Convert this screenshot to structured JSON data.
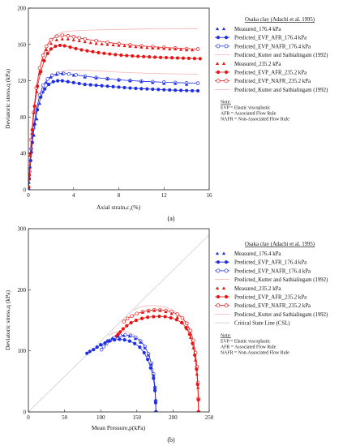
{
  "colors": {
    "blue": "#1f2ee0",
    "red": "#e81414",
    "pink": "#f4b4b4",
    "csl": "#c8c8c8",
    "axis": "#222222"
  },
  "chart_data": [
    {
      "type": "scatter",
      "panel_label": "(a)",
      "xlabel": "Axial strain,ε₁(%)",
      "ylabel": "Deviatoric stress,q (kPa)",
      "xlim": [
        0,
        16
      ],
      "ylim": [
        0,
        200
      ],
      "xticks": [
        "0",
        "4",
        "8",
        "12",
        "16"
      ],
      "yticks": [
        "0",
        "40",
        "80",
        "120",
        "160",
        "200"
      ],
      "legend_title": "Osaka clay (Adachi et al. 1995)",
      "legend": [
        "Measured_176.4 kPa",
        "Predicted_EVP_AFR_176.4 kPa",
        "Predicted_EVP_NAFR_176.4 kPa",
        "Predicted_Kutter and Sathialingam (1992)",
        "Measured_235.2 kPa",
        "Predicted_EVP_AFR_235.2 kPa",
        "Predicted_EVP_NAFR_235.2 kPa",
        "Predicted_Kutter and Sathialingam (1992)"
      ],
      "notes": [
        "Note:",
        "EVP   = Elastic viscoplastic",
        "AFR   = Associated Flow Rule",
        "NAFR = Non-Associated Flow Rule"
      ],
      "series": [
        {
          "name": "Measured_176.4 kPa",
          "x": [
            0.05,
            0.15,
            0.3,
            0.5,
            0.75,
            1.0,
            1.3,
            1.6,
            2.0,
            2.5,
            3.0,
            4.0,
            5.0,
            6.0,
            7.0,
            8.0,
            9.0,
            10.0,
            11.0,
            12.0,
            13.0,
            14.0
          ],
          "y": [
            8,
            25,
            42,
            60,
            78,
            95,
            108,
            118,
            124,
            127,
            128,
            126,
            124,
            123,
            122,
            121,
            120,
            119,
            118,
            117,
            117,
            116
          ]
        },
        {
          "name": "Predicted_EVP_AFR_176.4 kPa",
          "x": [
            0.02,
            0.08,
            0.2,
            0.35,
            0.55,
            0.8,
            1.1,
            1.45,
            1.8,
            2.2,
            2.6,
            3.0,
            3.5,
            4.0,
            4.5,
            5.0,
            5.5,
            6.0,
            6.5,
            7.0,
            7.5,
            8.0,
            8.5,
            9.0,
            9.5,
            10.0,
            10.5,
            11.0,
            11.5,
            12.0,
            12.5,
            13.0,
            13.5,
            14.0,
            14.5,
            15.0
          ],
          "y": [
            2,
            12,
            32,
            52,
            72,
            88,
            102,
            111,
            116,
            119,
            120,
            120,
            119,
            118,
            117,
            116,
            115.5,
            115,
            114.5,
            114,
            113.5,
            113,
            112.5,
            112,
            111.6,
            111.3,
            111,
            110.7,
            110.4,
            110.1,
            109.8,
            109.6,
            109.4,
            109.2,
            109,
            108.9
          ]
        },
        {
          "name": "Predicted_EVP_NAFR_176.4 kPa",
          "x": [
            0,
            0.1,
            0.25,
            0.45,
            0.7,
            1.0,
            1.3,
            1.7,
            2.1,
            2.6,
            3.1,
            3.6,
            4.2,
            5.0,
            6.0,
            7.0,
            8.0,
            9.0,
            10.0,
            11.0,
            12.0,
            13.0,
            14.0,
            15.0
          ],
          "y": [
            0,
            20,
            45,
            68,
            88,
            104,
            115,
            122,
            126,
            128,
            128,
            127.5,
            126.5,
            125,
            123.5,
            122.2,
            121,
            120.2,
            119.5,
            118.9,
            118.4,
            118,
            117.6,
            117.3
          ]
        },
        {
          "name": "Predicted_Kutter and Sathialingam (1992)",
          "x": [
            0,
            0.1,
            0.25,
            0.45,
            0.7,
            1.0,
            1.3,
            1.7,
            2.2,
            2.8,
            3.5,
            4.5,
            6,
            8,
            10,
            12,
            14,
            15
          ],
          "y": [
            0,
            18,
            42,
            66,
            86,
            102,
            112,
            120,
            126,
            130,
            131.5,
            132,
            131,
            129.5,
            128.5,
            127.8,
            127.3,
            127
          ]
        },
        {
          "name": "Measured_235.2 kPa",
          "x": [
            0.05,
            0.15,
            0.3,
            0.5,
            0.75,
            1.0,
            1.3,
            1.6,
            2.0,
            2.5,
            3.0,
            3.5,
            4.0,
            4.5,
            5.0,
            5.5,
            6.0,
            6.5,
            7.0,
            7.5,
            8.0,
            8.5,
            9.0,
            9.5,
            10.0,
            10.5,
            11.0,
            11.5,
            12.0,
            12.5,
            13.0,
            13.5,
            14.0,
            14.5
          ],
          "y": [
            12,
            38,
            62,
            85,
            108,
            128,
            143,
            154,
            161,
            165,
            166,
            166,
            165,
            164,
            163,
            162,
            161,
            160.5,
            160,
            159.5,
            159,
            158.5,
            158,
            157.5,
            157,
            156.5,
            156,
            156,
            155.5,
            155,
            155,
            154.5,
            154,
            154
          ]
        },
        {
          "name": "Predicted_EVP_AFR_235.2 kPa",
          "x": [
            0.02,
            0.08,
            0.2,
            0.35,
            0.55,
            0.8,
            1.1,
            1.4,
            1.7,
            2.0,
            2.4,
            2.8,
            3.2,
            3.7,
            4.2,
            4.7,
            5.2,
            5.7,
            6.2,
            6.7,
            7.2,
            7.7,
            8.2,
            8.7,
            9.2,
            9.7,
            10.2,
            10.7,
            11.2,
            11.7,
            12.2,
            12.7,
            13.2,
            13.7,
            14.2,
            14.7,
            15.2
          ],
          "y": [
            3,
            16,
            40,
            66,
            92,
            114,
            130,
            142,
            150,
            155,
            158,
            159,
            158.5,
            157,
            155.5,
            154,
            153,
            152,
            151,
            150.2,
            149.5,
            148.8,
            148.2,
            147.7,
            147.3,
            146.9,
            146.6,
            146.3,
            146,
            145.7,
            145.5,
            145.3,
            145.1,
            144.9,
            144.7,
            144.5,
            144.3
          ]
        },
        {
          "name": "Predicted_EVP_NAFR_235.2 kPa",
          "x": [
            0,
            0.1,
            0.25,
            0.45,
            0.7,
            1.0,
            1.3,
            1.6,
            2.0,
            2.5,
            3.0,
            3.5,
            4.0,
            4.5,
            5,
            6,
            7,
            8,
            9,
            10,
            11,
            12,
            13,
            14,
            15
          ],
          "y": [
            0,
            25,
            55,
            85,
            112,
            134,
            148,
            158,
            165,
            169,
            170,
            169.5,
            168.5,
            167.2,
            166,
            164,
            162.2,
            160.8,
            159.5,
            158.4,
            157.5,
            156.7,
            156,
            155.4,
            154.9
          ]
        },
        {
          "name": "Predicted_Kutter and Sathialingam (1992)",
          "x": [
            0,
            0.1,
            0.25,
            0.45,
            0.7,
            1.0,
            1.3,
            1.6,
            2.0,
            2.5,
            3.0,
            3.5,
            4.0,
            5,
            6,
            8,
            10,
            12,
            14,
            15
          ],
          "y": [
            0,
            24,
            54,
            84,
            111,
            133,
            147,
            158,
            166,
            171,
            173.5,
            174.5,
            175,
            175.5,
            176,
            176.5,
            177,
            177.2,
            177.4,
            177.5
          ]
        }
      ]
    },
    {
      "type": "scatter",
      "panel_label": "(b)",
      "xlabel": "Mean Pressure,p(kPa)",
      "ylabel": "Deviatoric stress,q (kPa)",
      "xlim": [
        0,
        250
      ],
      "ylim": [
        0,
        300
      ],
      "xticks": [
        "0",
        "50",
        "100",
        "150",
        "200",
        "250"
      ],
      "yticks": [
        "0",
        "100",
        "200",
        "300"
      ],
      "legend_title": "Osaka clay (Adachi et al. 1995)",
      "legend": [
        "Measured_176.4 kPa",
        "Predicted_EVP_AFR_176.4 kPa",
        "Predicted_EVP_NAFR_176.4 kPa",
        "Predicted_Kutter and Sathialingam (1992)",
        "Measured_235.2 kPa",
        "Predicted_EVP_AFR_235.2 kPa",
        "Predicted_EVP_NAFR_235.2 kPa",
        "Predicted_Kutter and Sathialingam (1992)",
        "Critical State Line (CSL)"
      ],
      "notes": [
        "Note:",
        "EVP   = Elastic viscoplastic",
        "AFR   = Associated Flow Rule",
        "NAFR = Non-Associated Flow Rule"
      ],
      "series": [
        {
          "name": "Measured_176.4 kPa",
          "x": [
            176.4,
            176,
            175,
            173,
            170,
            166,
            161,
            155,
            148,
            140,
            132,
            124,
            116,
            109
          ],
          "y": [
            0,
            20,
            40,
            60,
            78,
            93,
            105,
            114,
            120,
            124,
            125,
            124,
            121,
            117
          ]
        },
        {
          "name": "Predicted_EVP_AFR_176.4 kPa",
          "x": [
            176.4,
            176,
            175,
            173,
            169,
            165,
            160,
            154,
            147,
            140,
            133,
            126,
            119,
            112,
            106,
            100,
            95,
            90,
            85,
            81
          ],
          "y": [
            0,
            15,
            35,
            55,
            72,
            86,
            97,
            106,
            112,
            116,
            118,
            119,
            118,
            116,
            113,
            110,
            106,
            102,
            99,
            96
          ]
        },
        {
          "name": "Predicted_EVP_NAFR_176.4 kPa",
          "x": [
            176.4,
            176,
            175,
            173,
            170,
            166,
            161,
            155,
            148,
            141,
            134,
            127,
            120,
            113,
            108,
            104,
            101
          ],
          "y": [
            0,
            18,
            40,
            62,
            80,
            95,
            107,
            116,
            122,
            125,
            126,
            125,
            122,
            117,
            112,
            107,
            102
          ]
        },
        {
          "name": "Predicted_Kutter and Sathialingam (1992)",
          "x": [
            176.4,
            176,
            175,
            172,
            168,
            163,
            157,
            150,
            143,
            136,
            129,
            122,
            115,
            110
          ],
          "y": [
            0,
            20,
            45,
            68,
            88,
            103,
            115,
            123,
            128,
            131,
            132,
            131,
            128,
            124
          ]
        },
        {
          "name": "Measured_235.2 kPa",
          "x": [
            235.2,
            235,
            234.5,
            233,
            231,
            228,
            224,
            219,
            213,
            206,
            198,
            190,
            182,
            174,
            166,
            158
          ],
          "y": [
            0,
            20,
            40,
            62,
            85,
            105,
            122,
            136,
            147,
            155,
            161,
            164,
            166,
            166,
            165,
            163
          ]
        },
        {
          "name": "Predicted_EVP_AFR_235.2 kPa",
          "x": [
            235.2,
            235,
            234,
            232.5,
            230,
            227,
            223,
            218,
            212,
            205,
            197,
            189,
            181,
            173,
            165,
            157,
            149,
            142,
            136,
            131,
            127,
            124,
            122
          ],
          "y": [
            0,
            20,
            45,
            70,
            93,
            112,
            127,
            138,
            146,
            151,
            154,
            156,
            156.5,
            156,
            155,
            153,
            150,
            146,
            141,
            136,
            131,
            127,
            124
          ]
        },
        {
          "name": "Predicted_EVP_NAFR_235.2 kPa",
          "x": [
            235.2,
            235,
            234.3,
            233,
            231,
            228,
            224,
            219,
            213,
            206,
            198,
            190,
            182,
            174,
            166,
            158,
            150,
            143,
            137,
            132
          ],
          "y": [
            0,
            22,
            48,
            74,
            97,
            117,
            133,
            145,
            154,
            160,
            164,
            166,
            167,
            167,
            166,
            164,
            161,
            157,
            153,
            148
          ]
        },
        {
          "name": "Predicted_Kutter and Sathialingam (1992)",
          "x": [
            235.2,
            235,
            234,
            232,
            229,
            225,
            220,
            214,
            207,
            199,
            191,
            183,
            175,
            167,
            159,
            151,
            145
          ],
          "y": [
            0,
            25,
            52,
            80,
            104,
            124,
            140,
            152,
            161,
            167,
            171,
            173,
            174,
            174,
            173,
            170,
            166
          ]
        },
        {
          "name": "Critical State Line (CSL)",
          "x": [
            0,
            250
          ],
          "y": [
            0,
            290
          ]
        }
      ]
    }
  ]
}
